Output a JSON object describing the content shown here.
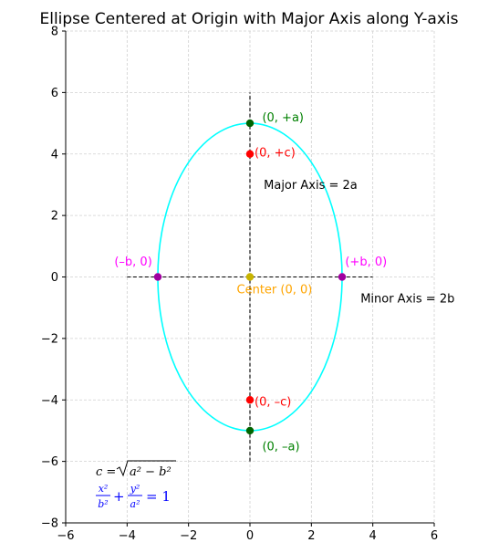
{
  "chart_data": {
    "type": "scatter",
    "title": "Ellipse Centered at Origin with Major Axis along Y-axis",
    "xlabel": "",
    "ylabel": "",
    "xlim": [
      -6,
      6
    ],
    "ylim": [
      -8,
      8
    ],
    "x_ticks": [
      -6,
      -4,
      -2,
      0,
      2,
      4,
      6
    ],
    "y_ticks": [
      -8,
      -6,
      -4,
      -2,
      0,
      2,
      4,
      6,
      8
    ],
    "x_tick_labels": [
      "−6",
      "−4",
      "−2",
      "0",
      "2",
      "4",
      "6"
    ],
    "y_tick_labels": [
      "−8",
      "−6",
      "−4",
      "−2",
      "0",
      "2",
      "4",
      "6",
      "8"
    ],
    "grid": true,
    "ellipse": {
      "a": 5,
      "b": 3,
      "color": "#00ffff"
    },
    "axis_lines": [
      {
        "x1": -4,
        "y1": 0,
        "x2": 4,
        "y2": 0
      },
      {
        "x1": 0,
        "y1": -6,
        "x2": 0,
        "y2": 6
      }
    ],
    "points": [
      {
        "x": 0,
        "y": 5,
        "color": "#006400"
      },
      {
        "x": 0,
        "y": -5,
        "color": "#006400"
      },
      {
        "x": 0,
        "y": 4,
        "color": "#ff0000"
      },
      {
        "x": 0,
        "y": -4,
        "color": "#ff0000"
      },
      {
        "x": -3,
        "y": 0,
        "color": "#a000a0"
      },
      {
        "x": 3,
        "y": 0,
        "color": "#a000a0"
      },
      {
        "x": 0,
        "y": 0,
        "color": "#c8b400"
      }
    ],
    "annotations": [
      {
        "text": "(0, +a)",
        "x": 0.4,
        "y": 5.2,
        "color": "#008000",
        "anchor": "start"
      },
      {
        "text": "(0, –a)",
        "x": 0.4,
        "y": -5.5,
        "color": "#008000",
        "anchor": "start"
      },
      {
        "text": "(0, +c)",
        "x": 0.15,
        "y": 4.05,
        "color": "#ff0000",
        "anchor": "start"
      },
      {
        "text": "(0, –c)",
        "x": 0.15,
        "y": -4.05,
        "color": "#ff0000",
        "anchor": "start"
      },
      {
        "text": "(–b, 0)",
        "x": -3.8,
        "y": 0.5,
        "color": "#ff00ff",
        "anchor": "middle"
      },
      {
        "text": "(+b, 0)",
        "x": 3.1,
        "y": 0.5,
        "color": "#ff00ff",
        "anchor": "start"
      },
      {
        "text": "Center (0, 0)",
        "x": 0.8,
        "y": -0.4,
        "color": "#ffa500",
        "anchor": "middle"
      },
      {
        "text": "Major Axis = 2a",
        "x": 0.45,
        "y": 3.0,
        "color": "#000000",
        "anchor": "start"
      },
      {
        "text": "Minor Axis = 2b",
        "x": 3.6,
        "y": -0.7,
        "color": "#000000",
        "anchor": "start"
      }
    ],
    "formulas": {
      "c_lhs": "c = ",
      "c_radicand": "a² − b²",
      "eq_x_num": "x²",
      "eq_x_den": "b²",
      "eq_plus": "+",
      "eq_y_num": "y²",
      "eq_y_den": "a²",
      "eq_rhs": "= 1",
      "color_c": "#000000",
      "color_eq": "#0000ff"
    }
  }
}
